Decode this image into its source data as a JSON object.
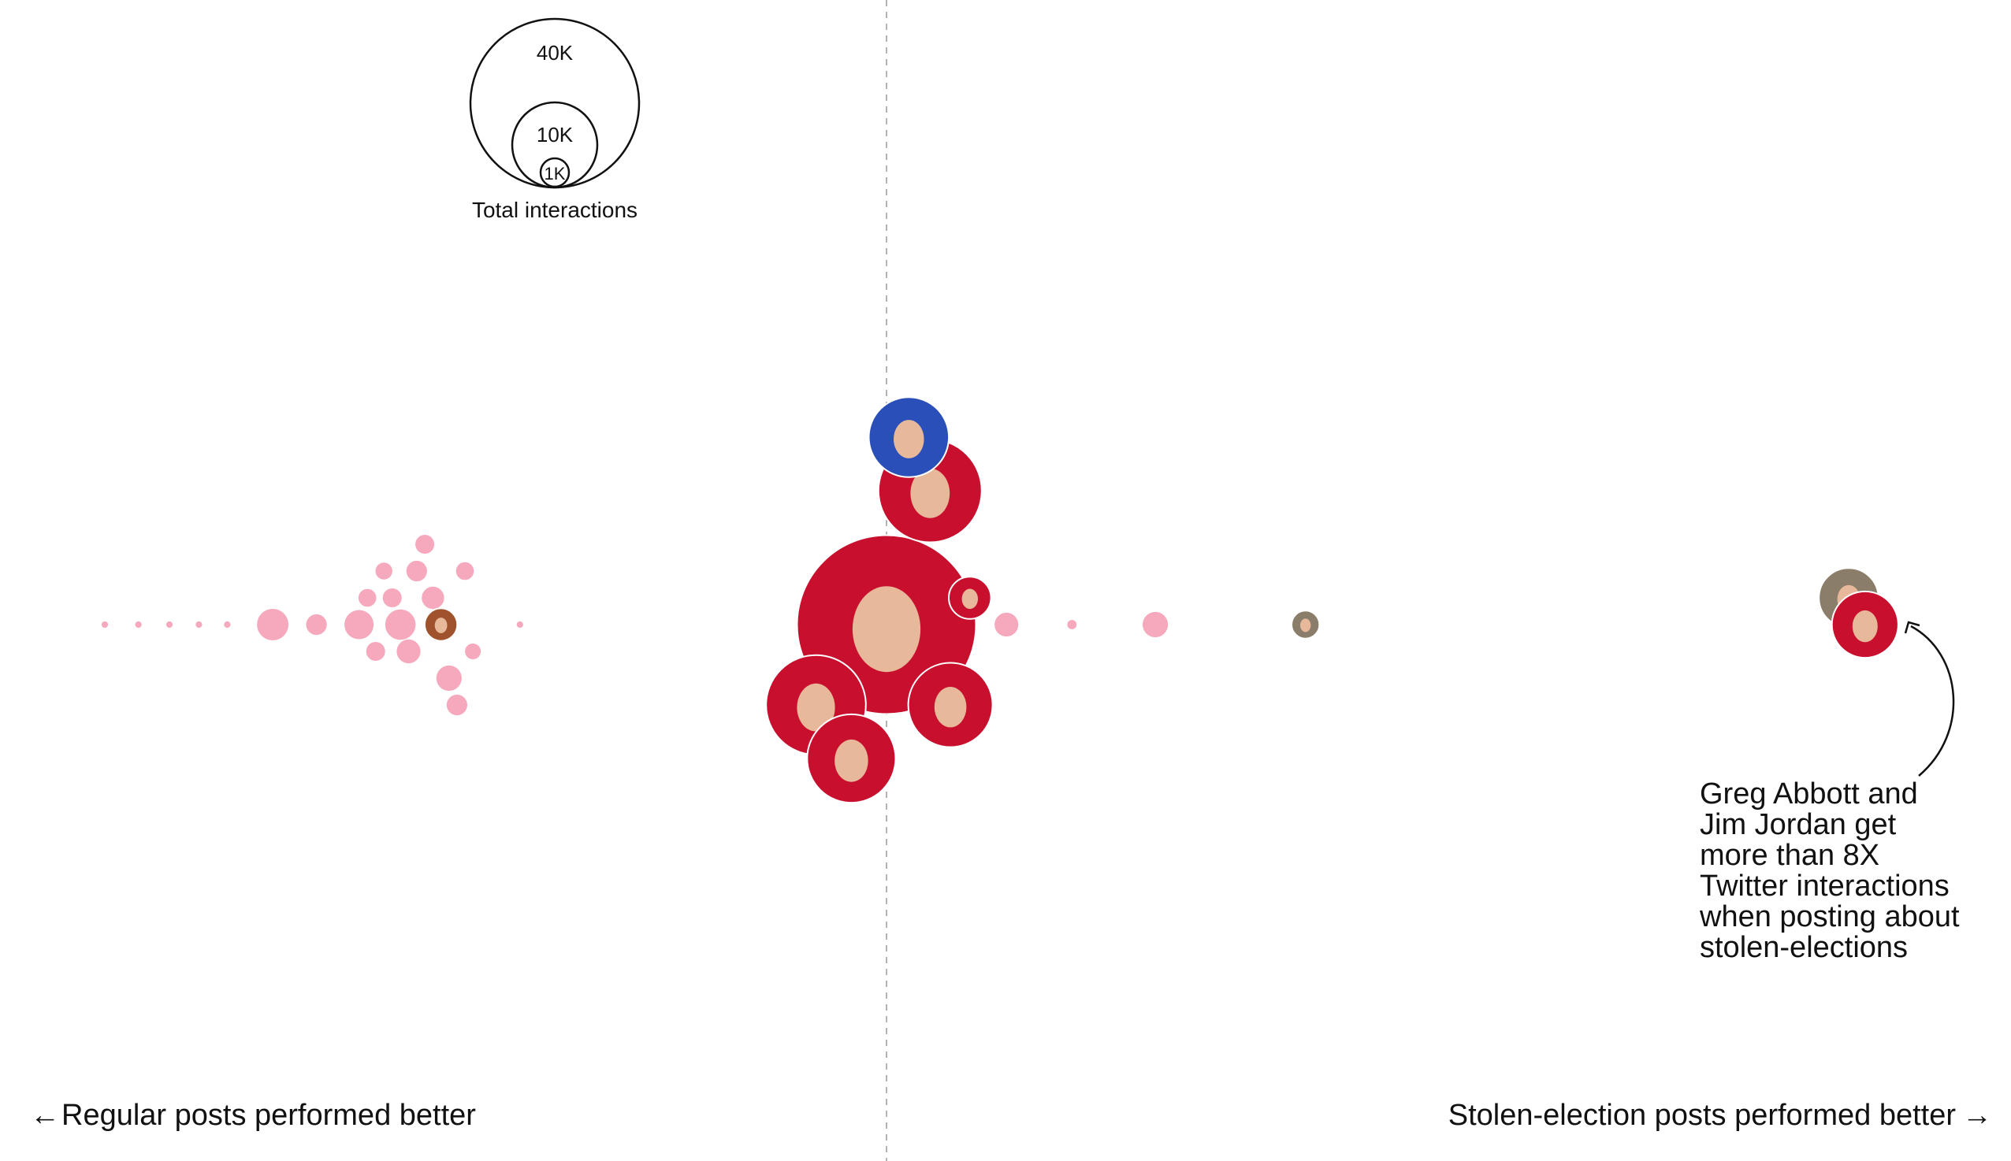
{
  "chart_data": {
    "type": "scatter",
    "title": "",
    "x_axis": {
      "meaning": "ratio of stolen-election post performance to regular post performance",
      "left_label": "Regular posts performed better",
      "right_label": "Stolen-election posts performed better",
      "left_arrow": "←",
      "right_arrow": "→",
      "center_ratio": 1
    },
    "size_legend": {
      "title": "Total interactions",
      "values": [
        {
          "value": 40000,
          "label": "40K"
        },
        {
          "value": 10000,
          "label": "10K"
        },
        {
          "value": 1000,
          "label": "1K"
        }
      ]
    },
    "annotation": {
      "lines": [
        "Greg Abbott and",
        "Jim Jordan get",
        "more than 8X",
        "Twitter interactions",
        "when posting about",
        "stolen-elections"
      ]
    },
    "bubble_colors": {
      "pink": "#f6a9bd",
      "red_photo": "#c8102e",
      "blue_photo": "#2a4fb8",
      "dashed_line": "#b3b3b3"
    },
    "points": [
      {
        "x": 0.03,
        "y": 0,
        "interactions": 60,
        "photo": false
      },
      {
        "x": 0.06,
        "y": 0,
        "interactions": 60,
        "photo": false
      },
      {
        "x": 0.09,
        "y": 0,
        "interactions": 60,
        "photo": false
      },
      {
        "x": 0.12,
        "y": 0,
        "interactions": 60,
        "photo": false
      },
      {
        "x": 0.15,
        "y": 0,
        "interactions": 60,
        "photo": false
      },
      {
        "x": 0.2,
        "y": 0,
        "interactions": 1400,
        "photo": false
      },
      {
        "x": 0.25,
        "y": 0,
        "interactions": 600,
        "photo": false
      },
      {
        "x": 0.3,
        "y": 0,
        "interactions": 1200,
        "photo": false
      },
      {
        "x": 0.31,
        "y": 1,
        "interactions": 450,
        "photo": false
      },
      {
        "x": 0.32,
        "y": -1,
        "interactions": 500,
        "photo": false
      },
      {
        "x": 0.33,
        "y": 2,
        "interactions": 400,
        "photo": false
      },
      {
        "x": 0.34,
        "y": 1,
        "interactions": 500,
        "photo": false
      },
      {
        "x": 0.35,
        "y": 0,
        "interactions": 1300,
        "photo": false
      },
      {
        "x": 0.36,
        "y": -1,
        "interactions": 800,
        "photo": false
      },
      {
        "x": 0.37,
        "y": 2,
        "interactions": 600,
        "photo": false
      },
      {
        "x": 0.38,
        "y": 3,
        "interactions": 500,
        "photo": false
      },
      {
        "x": 0.39,
        "y": 1,
        "interactions": 700,
        "photo": false
      },
      {
        "x": 0.4,
        "y": 0,
        "interactions": 1500,
        "photo": true,
        "color": "#a0522d"
      },
      {
        "x": 0.41,
        "y": -2,
        "interactions": 900,
        "photo": false
      },
      {
        "x": 0.42,
        "y": -3,
        "interactions": 600,
        "photo": false
      },
      {
        "x": 0.43,
        "y": 2,
        "interactions": 450,
        "photo": false
      },
      {
        "x": 0.44,
        "y": -1,
        "interactions": 350,
        "photo": false
      },
      {
        "x": 0.5,
        "y": 0,
        "interactions": 60,
        "photo": false
      },
      {
        "x": 1.0,
        "y": 0,
        "interactions": 45000,
        "photo": true,
        "color": "#c8102e"
      },
      {
        "x": 1.1,
        "y": 5,
        "interactions": 15000,
        "photo": true,
        "color": "#c8102e"
      },
      {
        "x": 1.05,
        "y": 7,
        "interactions": 9000,
        "photo": true,
        "color": "#2a4fb8"
      },
      {
        "x": 0.9,
        "y": -3,
        "interactions": 14000,
        "photo": true,
        "color": "#c8102e"
      },
      {
        "x": 0.95,
        "y": -5,
        "interactions": 11000,
        "photo": true,
        "color": "#c8102e"
      },
      {
        "x": 1.15,
        "y": -3,
        "interactions": 10000,
        "photo": true,
        "color": "#c8102e"
      },
      {
        "x": 1.2,
        "y": 1,
        "interactions": 2500,
        "photo": true,
        "color": "#c8102e"
      },
      {
        "x": 1.3,
        "y": 0,
        "interactions": 800,
        "photo": false
      },
      {
        "x": 1.5,
        "y": 0,
        "interactions": 120,
        "photo": false
      },
      {
        "x": 1.8,
        "y": 0,
        "interactions": 900,
        "photo": false
      },
      {
        "x": 2.5,
        "y": 0,
        "interactions": 1100,
        "photo": true,
        "color": "#8a7d6a"
      },
      {
        "x": 8.2,
        "y": 1,
        "interactions": 5000,
        "photo": true,
        "color": "#8a7d6a"
      },
      {
        "x": 8.5,
        "y": 0,
        "interactions": 6200,
        "photo": true,
        "color": "#c8102e"
      }
    ]
  }
}
